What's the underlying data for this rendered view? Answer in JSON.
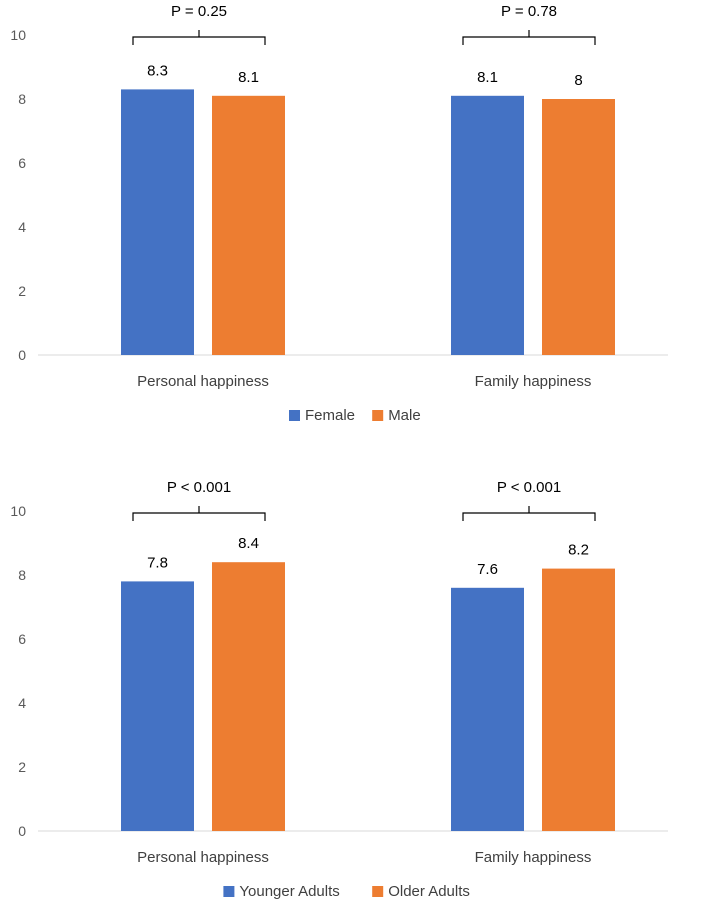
{
  "colors": {
    "series1": "#4472C4",
    "series2": "#ED7D31",
    "axis": "#D9D9D9",
    "bracket": "#000000"
  },
  "chart_data": [
    {
      "type": "bar",
      "categories": [
        "Personal happiness",
        "Family happiness"
      ],
      "series": [
        {
          "name": "Female",
          "values": [
            8.3,
            8.1
          ]
        },
        {
          "name": "Male",
          "values": [
            8.1,
            8
          ]
        }
      ],
      "data_labels": [
        [
          "8.3",
          "8.1"
        ],
        [
          "8.1",
          "8"
        ]
      ],
      "p_values": [
        "P = 0.25",
        "P = 0.78"
      ],
      "ylim": [
        0,
        10
      ],
      "yticks": [
        "0",
        "2",
        "4",
        "6",
        "8",
        "10"
      ],
      "legend": [
        "Female",
        "Male"
      ],
      "legend_position": "bottom",
      "grid": false
    },
    {
      "type": "bar",
      "categories": [
        "Personal happiness",
        "Family happiness"
      ],
      "series": [
        {
          "name": "Younger Adults",
          "values": [
            7.8,
            7.6
          ]
        },
        {
          "name": "Older Adults",
          "values": [
            8.4,
            8.2
          ]
        }
      ],
      "data_labels": [
        [
          "7.8",
          "7.6"
        ],
        [
          "8.4",
          "8.2"
        ]
      ],
      "p_values": [
        "P < 0.001",
        "P < 0.001"
      ],
      "ylim": [
        0,
        10
      ],
      "yticks": [
        "0",
        "2",
        "4",
        "6",
        "8",
        "10"
      ],
      "legend": [
        "Younger Adults",
        "Older Adults"
      ],
      "legend_position": "bottom",
      "grid": false
    }
  ]
}
